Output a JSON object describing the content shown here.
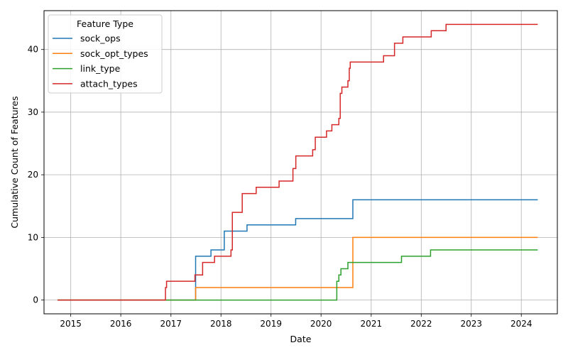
{
  "chart_data": {
    "type": "line",
    "step": true,
    "title": "",
    "xlabel": "Date",
    "ylabel": "Cumulative Count of Features",
    "x_type": "date",
    "xlim": [
      "2014-06-20",
      "2024-09-20"
    ],
    "ylim": [
      -2.2,
      46.2
    ],
    "x_ticks": [
      "2015-01-01",
      "2016-01-01",
      "2017-01-01",
      "2018-01-01",
      "2019-01-01",
      "2020-01-01",
      "2021-01-01",
      "2022-01-01",
      "2023-01-01",
      "2024-01-01"
    ],
    "x_tick_labels": [
      "2015",
      "2016",
      "2017",
      "2018",
      "2019",
      "2020",
      "2021",
      "2022",
      "2023",
      "2024"
    ],
    "y_ticks": [
      0,
      10,
      20,
      30,
      40
    ],
    "y_tick_labels": [
      "0",
      "10",
      "20",
      "30",
      "40"
    ],
    "grid": true,
    "legend": {
      "title": "Feature Type",
      "placement": "top-left"
    },
    "series": [
      {
        "name": "sock_ops",
        "color": "#1f77b4",
        "points": [
          [
            "2014-09-27",
            0
          ],
          [
            "2017-06-30",
            7
          ],
          [
            "2017-10-20",
            8
          ],
          [
            "2018-01-25",
            11
          ],
          [
            "2018-07-10",
            12
          ],
          [
            "2019-06-30",
            13
          ],
          [
            "2020-08-20",
            16
          ],
          [
            "2024-04-30",
            16
          ]
        ]
      },
      {
        "name": "sock_opt_types",
        "color": "#ff7f0e",
        "points": [
          [
            "2014-09-27",
            0
          ],
          [
            "2017-06-30",
            2
          ],
          [
            "2020-08-20",
            10
          ],
          [
            "2024-04-30",
            10
          ]
        ]
      },
      {
        "name": "link_type",
        "color": "#2ca02c",
        "points": [
          [
            "2014-09-27",
            0
          ],
          [
            "2020-04-25",
            3
          ],
          [
            "2020-05-10",
            4
          ],
          [
            "2020-05-25",
            5
          ],
          [
            "2020-07-15",
            6
          ],
          [
            "2021-08-10",
            7
          ],
          [
            "2022-03-10",
            8
          ],
          [
            "2024-04-30",
            8
          ]
        ]
      },
      {
        "name": "attach_types",
        "color": "#d62728",
        "points": [
          [
            "2014-09-27",
            0
          ],
          [
            "2016-11-22",
            2
          ],
          [
            "2016-11-30",
            3
          ],
          [
            "2017-06-25",
            4
          ],
          [
            "2017-08-20",
            6
          ],
          [
            "2017-11-15",
            7
          ],
          [
            "2018-03-15",
            8
          ],
          [
            "2018-03-25",
            14
          ],
          [
            "2018-06-05",
            17
          ],
          [
            "2018-09-15",
            18
          ],
          [
            "2019-03-01",
            19
          ],
          [
            "2019-06-10",
            21
          ],
          [
            "2019-07-01",
            23
          ],
          [
            "2019-11-01",
            24
          ],
          [
            "2019-11-20",
            26
          ],
          [
            "2020-02-10",
            27
          ],
          [
            "2020-03-20",
            28
          ],
          [
            "2020-05-10",
            29
          ],
          [
            "2020-05-20",
            33
          ],
          [
            "2020-06-01",
            34
          ],
          [
            "2020-07-15",
            35
          ],
          [
            "2020-07-25",
            37
          ],
          [
            "2020-08-01",
            38
          ],
          [
            "2021-04-01",
            39
          ],
          [
            "2021-06-20",
            41
          ],
          [
            "2021-08-20",
            42
          ],
          [
            "2022-03-15",
            43
          ],
          [
            "2022-07-01",
            44
          ],
          [
            "2024-04-30",
            44
          ]
        ]
      }
    ]
  }
}
